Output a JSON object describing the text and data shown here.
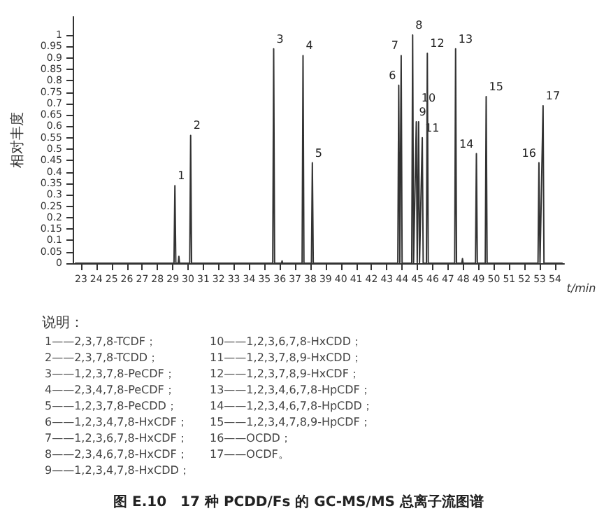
{
  "chart_data": {
    "type": "line",
    "title": "图 E.10　17 种 PCDD/Fs 的 GC-MS/MS 总离子流图谱",
    "xlabel": "t/min",
    "ylabel": "相对丰度",
    "x": [
      22.6,
      29.08,
      29.14,
      29.2,
      29.36,
      29.4,
      29.44,
      30.11,
      30.17,
      30.23,
      35.54,
      35.6,
      35.66,
      36.11,
      36.15,
      36.19,
      37.46,
      37.52,
      37.58,
      38.07,
      38.13,
      38.19,
      43.72,
      43.78,
      43.85,
      43.94,
      44.0,
      44.63,
      44.69,
      44.75,
      44.93,
      44.99,
      45.08,
      45.14,
      45.32,
      45.38,
      45.59,
      45.65,
      45.71,
      47.44,
      47.5,
      47.56,
      47.91,
      47.95,
      47.99,
      48.8,
      48.86,
      48.92,
      49.44,
      49.5,
      49.56,
      52.89,
      52.95,
      53.02,
      53.22,
      53.28,
      54.5
    ],
    "series": [
      {
        "color": "#333333",
        "values": [
          0,
          0,
          0.34,
          0,
          0,
          0.03,
          0,
          0,
          0.56,
          0,
          0,
          0.94,
          0,
          0,
          0.01,
          0,
          0,
          0.91,
          0,
          0,
          0.44,
          0,
          0,
          0.78,
          0,
          0.91,
          0,
          0,
          1.0,
          0,
          0.62,
          0,
          0.62,
          0,
          0.55,
          0,
          0,
          0.92,
          0,
          0,
          0.94,
          0,
          0,
          0.02,
          0,
          0,
          0.48,
          0,
          0,
          0.73,
          0,
          0,
          0.44,
          0,
          0.69,
          0,
          0
        ]
      }
    ],
    "xlim": [
      22.5,
      54.6
    ],
    "xticks": [
      23,
      24,
      25,
      26,
      27,
      28,
      29,
      30,
      31,
      32,
      33,
      34,
      35,
      36,
      37,
      38,
      39,
      40,
      41,
      42,
      43,
      44,
      45,
      46,
      47,
      48,
      49,
      50,
      51,
      52,
      53,
      54
    ],
    "ylim": [
      0,
      1.08
    ],
    "yticks": [
      0,
      0.05,
      0.1,
      0.15,
      0.2,
      0.25,
      0.3,
      0.35,
      0.4,
      0.45,
      0.5,
      0.55,
      0.6,
      0.65,
      0.7,
      0.75,
      0.8,
      0.85,
      0.9,
      0.95,
      1
    ],
    "grid": false,
    "marker": "none",
    "line_style": "solid",
    "annotations": [
      {
        "text": "1",
        "x": 29.14,
        "y": 0.34
      },
      {
        "text": "2",
        "x": 30.17,
        "y": 0.56
      },
      {
        "text": "3",
        "x": 35.6,
        "y": 0.94
      },
      {
        "text": "4",
        "x": 37.52,
        "y": 0.91
      },
      {
        "text": "5",
        "x": 38.13,
        "y": 0.44
      },
      {
        "text": "6",
        "x": 43.78,
        "y": 0.78
      },
      {
        "text": "7",
        "x": 43.94,
        "y": 0.91
      },
      {
        "text": "8",
        "x": 44.69,
        "y": 1.0
      },
      {
        "text": "9",
        "x": 44.93,
        "y": 0.62
      },
      {
        "text": "10",
        "x": 45.08,
        "y": 0.62
      },
      {
        "text": "11",
        "x": 45.32,
        "y": 0.55
      },
      {
        "text": "12",
        "x": 45.65,
        "y": 0.92
      },
      {
        "text": "13",
        "x": 47.5,
        "y": 0.94
      },
      {
        "text": "14",
        "x": 48.86,
        "y": 0.48
      },
      {
        "text": "15",
        "x": 49.5,
        "y": 0.73
      },
      {
        "text": "16",
        "x": 52.95,
        "y": 0.44
      },
      {
        "text": "17",
        "x": 53.22,
        "y": 0.69
      },
      "说明：",
      "1——2,3,7,8-TCDF；",
      "2——2,3,7,8-TCDD；",
      "3——1,2,3,7,8-PeCDF；",
      "4——2,3,4,7,8-PeCDF；",
      "5——1,2,3,7,8-PeCDD；",
      "6——1,2,3,4,7,8-HxCDF；",
      "7——1,2,3,6,7,8-HxCDF；",
      "8——2,3,4,6,7,8-HxCDF；",
      "9——1,2,3,4,7,8-HxCDD；",
      "10——1,2,3,6,7,8-HxCDD；",
      "11——1,2,3,7,8,9-HxCDD；",
      "12——1,2,3,7,8,9-HxCDF；",
      "13——1,2,3,4,6,7,8-HpCDF；",
      "14——1,2,3,4,6,7,8-HpCDD；",
      "15——1,2,3,4,7,8,9-HpCDF；",
      "16——OCDD；",
      "17——OCDF。"
    ]
  }
}
